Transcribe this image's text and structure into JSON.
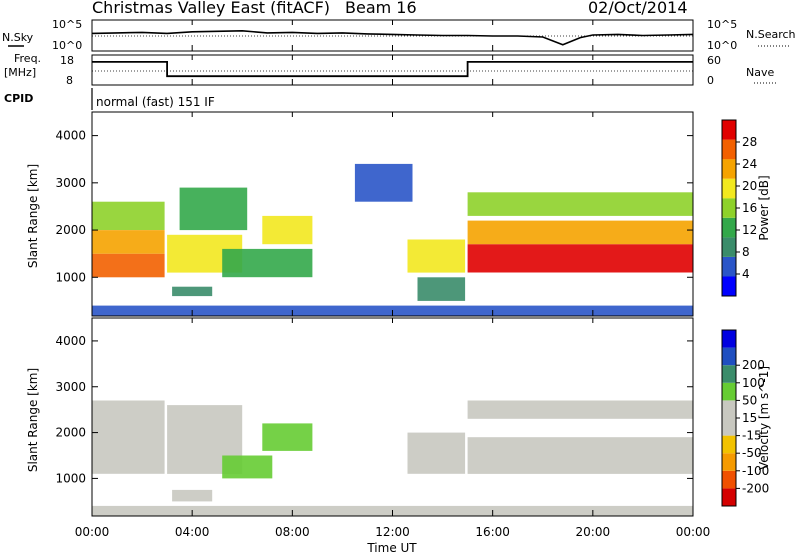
{
  "header": {
    "station": "Christmas Valley East (fitACF)",
    "beam": "Beam 16",
    "date": "02/Oct/2014"
  },
  "left_labels": {
    "nsky": "N.Sky",
    "freq": "Freq.",
    "freq_unit": "[MHz]",
    "cpid": "CPID"
  },
  "right_labels": {
    "nsearch": "N.Search",
    "nave": "Nave"
  },
  "cpid_text": "normal (fast) 151 IF",
  "noise_axis": {
    "ticks": [
      "10^5",
      "10^0"
    ]
  },
  "freq_axis": {
    "left_ticks": [
      "18",
      "8"
    ],
    "right_ticks": [
      "60",
      "0"
    ]
  },
  "time_axis": {
    "label": "Time UT",
    "ticks": [
      "00:00",
      "04:00",
      "08:00",
      "12:00",
      "16:00",
      "20:00",
      "00:00"
    ]
  },
  "range_axis": {
    "label": "Slant Range [km]",
    "ticks": [
      "1000",
      "2000",
      "3000",
      "4000"
    ]
  },
  "colors": {
    "power_scale": [
      "#0000ff",
      "#2a55c8",
      "#3a8c6a",
      "#33a84a",
      "#8ed22a",
      "#f2e81f",
      "#f5a300",
      "#f26000",
      "#e00000"
    ],
    "velocity_scale": [
      "#d40000",
      "#f05000",
      "#f59a00",
      "#f2c200",
      "#c8c8c0",
      "#c8c8c0",
      "#66cc33",
      "#3a8c6a",
      "#1f4fc0",
      "#0000e0"
    ]
  },
  "chart_data": [
    {
      "type": "line",
      "title": "N.Sky / N.Search",
      "x_range_hours": [
        0,
        24
      ],
      "y_scale": "log",
      "ylim": [
        "10^0",
        "10^5"
      ],
      "series": [
        {
          "name": "N.Sky",
          "x": [
            0,
            1,
            2,
            3,
            4,
            5,
            6,
            7,
            8,
            9,
            10,
            11,
            12,
            13,
            14,
            15,
            16,
            17,
            18,
            18.8,
            19.5,
            20,
            21,
            22,
            23,
            24
          ],
          "y_log": [
            3.0,
            3.1,
            3.2,
            3.0,
            3.3,
            3.4,
            3.5,
            3.1,
            3.2,
            3.0,
            3.1,
            2.9,
            2.8,
            2.7,
            2.6,
            2.6,
            2.5,
            2.5,
            2.3,
            0.8,
            2.2,
            2.7,
            2.8,
            2.6,
            2.7,
            2.8
          ]
        },
        {
          "name": "N.Search",
          "x": [
            0,
            24
          ],
          "y_log": [
            2.5,
            2.5
          ]
        }
      ]
    },
    {
      "type": "line",
      "title": "Freq / Nave",
      "x_range_hours": [
        0,
        24
      ],
      "series": [
        {
          "name": "Freq. [MHz]",
          "x": [
            0,
            3.0,
            3.0,
            15.0,
            15.0,
            24
          ],
          "y": [
            16.5,
            16.5,
            11.0,
            11.0,
            16.5,
            16.5
          ],
          "ylim": [
            8,
            18
          ]
        },
        {
          "name": "Nave",
          "x": [
            0,
            24
          ],
          "y": [
            30,
            30
          ],
          "ylim": [
            0,
            60
          ]
        }
      ]
    },
    {
      "type": "heatmap",
      "title": "Power",
      "colorbar_label": "Power [dB]",
      "colorbar_ticks": [
        4,
        8,
        12,
        16,
        20,
        24,
        28
      ],
      "value_range": [
        0,
        32
      ],
      "x_range_hours": [
        0,
        24
      ],
      "y_range_km": [
        180,
        4500
      ],
      "bands": [
        {
          "t0": 0.0,
          "t1": 2.9,
          "r0": 1000,
          "r1": 1500,
          "value": 27
        },
        {
          "t0": 0.0,
          "t1": 2.9,
          "r0": 1500,
          "r1": 2000,
          "value": 22
        },
        {
          "t0": 0.0,
          "t1": 2.9,
          "r0": 2000,
          "r1": 2600,
          "value": 16
        },
        {
          "t0": 3.0,
          "t1": 6.0,
          "r0": 1100,
          "r1": 1900,
          "value": 18
        },
        {
          "t0": 3.5,
          "t1": 6.2,
          "r0": 2000,
          "r1": 2900,
          "value": 13
        },
        {
          "t0": 3.2,
          "t1": 4.8,
          "r0": 600,
          "r1": 800,
          "value": 9
        },
        {
          "t0": 5.2,
          "t1": 8.8,
          "r0": 1000,
          "r1": 1600,
          "value": 14
        },
        {
          "t0": 6.8,
          "t1": 8.8,
          "r0": 1700,
          "r1": 2300,
          "value": 20
        },
        {
          "t0": 10.5,
          "t1": 12.8,
          "r0": 2600,
          "r1": 3400,
          "value": 7
        },
        {
          "t0": 12.6,
          "t1": 14.9,
          "r0": 1100,
          "r1": 1800,
          "value": 20
        },
        {
          "t0": 13.0,
          "t1": 14.9,
          "r0": 500,
          "r1": 1000,
          "value": 10
        },
        {
          "t0": 15.0,
          "t1": 24.0,
          "r0": 1100,
          "r1": 1700,
          "value": 29
        },
        {
          "t0": 15.0,
          "t1": 24.0,
          "r0": 1700,
          "r1": 2200,
          "value": 22
        },
        {
          "t0": 15.0,
          "t1": 24.0,
          "r0": 2300,
          "r1": 2800,
          "value": 17
        },
        {
          "t0": 0.0,
          "t1": 24.0,
          "r0": 180,
          "r1": 400,
          "value": 5
        }
      ]
    },
    {
      "type": "heatmap",
      "title": "Velocity",
      "colorbar_label": "Velocity [m s^-1]",
      "colorbar_ticks": [
        -200,
        -100,
        -50,
        -15,
        15,
        50,
        100,
        200
      ],
      "value_range": [
        -250,
        250
      ],
      "x_range_hours": [
        0,
        24
      ],
      "y_range_km": [
        180,
        4500
      ],
      "bands": [
        {
          "t0": 0.0,
          "t1": 2.9,
          "r0": 1100,
          "r1": 2700,
          "value": 0
        },
        {
          "t0": 3.0,
          "t1": 6.0,
          "r0": 1100,
          "r1": 2600,
          "value": 0
        },
        {
          "t0": 6.8,
          "t1": 8.8,
          "r0": 1600,
          "r1": 2200,
          "value": 60
        },
        {
          "t0": 5.2,
          "t1": 7.2,
          "r0": 1000,
          "r1": 1500,
          "value": 90
        },
        {
          "t0": 3.2,
          "t1": 4.8,
          "r0": 500,
          "r1": 750,
          "value": 40
        },
        {
          "t0": 12.6,
          "t1": 14.9,
          "r0": 1100,
          "r1": 2000,
          "value": 40
        },
        {
          "t0": 15.0,
          "t1": 24.0,
          "r0": 1100,
          "r1": 1900,
          "value": 0
        },
        {
          "t0": 15.0,
          "t1": 24.0,
          "r0": 2300,
          "r1": 2700,
          "value": 0
        },
        {
          "t0": 0.0,
          "t1": 24.0,
          "r0": 180,
          "r1": 400,
          "value": 30
        }
      ]
    }
  ]
}
